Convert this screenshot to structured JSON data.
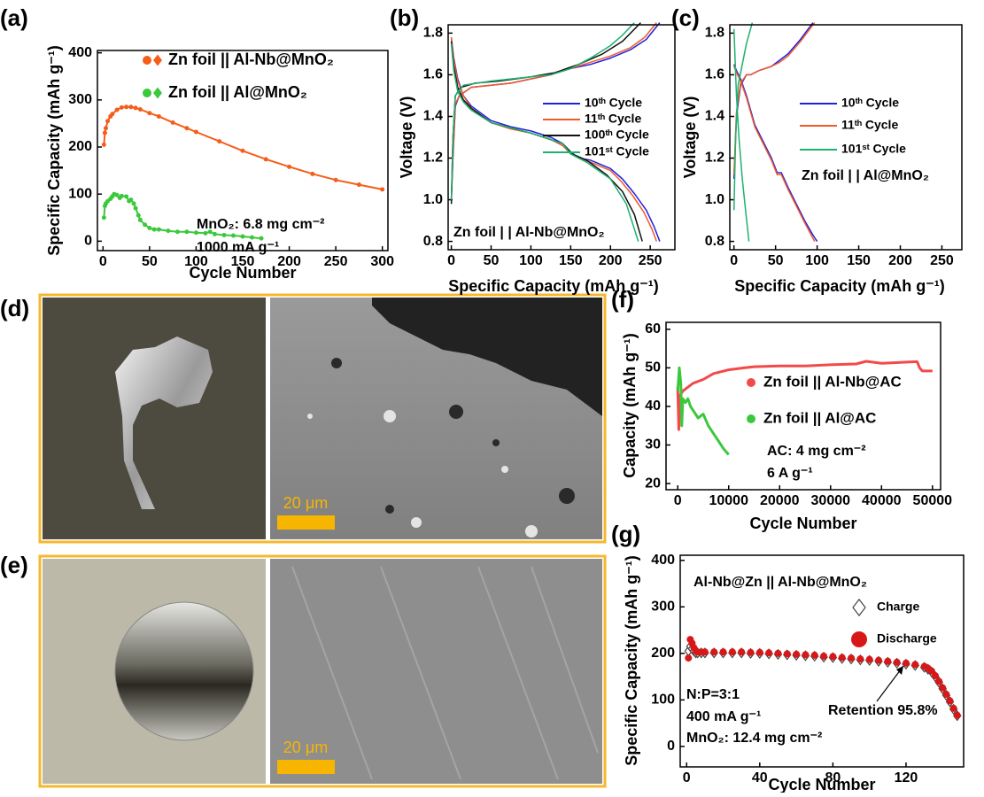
{
  "chart_data": [
    {
      "type": "line",
      "panel": "(a)",
      "x_label": "Cycle Number",
      "y_label": "Specific Capacity (mAh g⁻¹)",
      "xlim": [
        -6,
        306
      ],
      "ylim": [
        -20,
        405
      ],
      "xticks": [
        0,
        50,
        100,
        150,
        200,
        250,
        300
      ],
      "yticks": [
        0,
        100,
        200,
        300,
        400
      ],
      "series": [
        {
          "name": "Zn foil || Al-Nb@MnO₂",
          "color": "#f45d1a",
          "marker": "circle",
          "x": [
            1,
            2,
            3,
            5,
            8,
            10,
            15,
            20,
            25,
            30,
            35,
            40,
            50,
            60,
            75,
            90,
            100,
            125,
            150,
            175,
            200,
            225,
            250,
            275,
            300
          ],
          "values": [
            205,
            230,
            240,
            255,
            265,
            270,
            279,
            284,
            285,
            285,
            283,
            280,
            272,
            265,
            252,
            240,
            232,
            212,
            192,
            174,
            158,
            143,
            130,
            120,
            110
          ]
        },
        {
          "name": "Zn foil || Al@MnO₂",
          "color": "#3cc83c",
          "marker": "circle",
          "x": [
            1,
            2,
            3,
            5,
            8,
            10,
            12,
            15,
            18,
            20,
            25,
            28,
            30,
            33,
            35,
            38,
            40,
            45,
            50,
            55,
            60,
            70,
            80,
            90,
            100,
            110,
            115,
            120,
            130,
            140,
            150,
            160,
            170
          ],
          "values": [
            50,
            75,
            80,
            85,
            90,
            95,
            100,
            98,
            92,
            96,
            95,
            85,
            88,
            80,
            70,
            55,
            45,
            35,
            28,
            25,
            25,
            22,
            20,
            20,
            18,
            17,
            20,
            15,
            13,
            12,
            10,
            8,
            6
          ]
        }
      ],
      "annotations": [
        "MnO₂: 6.8 mg cm⁻²",
        "1000 mA g⁻¹"
      ]
    },
    {
      "type": "line",
      "panel": "(b)",
      "x_label": "Specific Capacity (mAh g⁻¹)",
      "y_label": "Voltage (V)",
      "xlim": [
        -4,
        281
      ],
      "ylim": [
        0.76,
        1.84
      ],
      "xticks": [
        0,
        50,
        100,
        150,
        200,
        250
      ],
      "yticks": [
        0.8,
        {
          "value": 1,
          "label": "1.0"
        },
        1.2,
        1.4,
        1.6,
        1.8
      ],
      "series": [
        {
          "name": "10ᵗʰ Cycle",
          "color": "#2020e0",
          "x": [
            0,
            2,
            5,
            10,
            25,
            50,
            75,
            100,
            125,
            150,
            175,
            200,
            225,
            245,
            262,
            null,
            0,
            3,
            8,
            15,
            25,
            50,
            75,
            100,
            125,
            140,
            150,
            160,
            175,
            200,
            215,
            230,
            245,
            255,
            262
          ],
          "values": [
            1.0,
            1.2,
            1.45,
            1.5,
            1.54,
            1.55,
            1.56,
            1.58,
            1.6,
            1.63,
            1.65,
            1.68,
            1.72,
            1.77,
            1.85,
            null,
            1.78,
            1.68,
            1.58,
            1.5,
            1.45,
            1.38,
            1.35,
            1.33,
            1.3,
            1.27,
            1.23,
            1.2,
            1.19,
            1.15,
            1.1,
            1.03,
            0.95,
            0.87,
            0.8
          ]
        },
        {
          "name": "11ᵗʰ Cycle",
          "color": "#f05a28",
          "x": [
            0,
            2,
            5,
            10,
            25,
            50,
            75,
            100,
            125,
            150,
            175,
            200,
            225,
            243,
            258,
            null,
            0,
            3,
            8,
            15,
            25,
            50,
            75,
            100,
            125,
            140,
            150,
            160,
            175,
            200,
            213,
            228,
            242,
            252,
            258
          ],
          "values": [
            1.0,
            1.22,
            1.46,
            1.5,
            1.54,
            1.55,
            1.56,
            1.58,
            1.6,
            1.63,
            1.66,
            1.69,
            1.73,
            1.78,
            1.85,
            null,
            1.78,
            1.67,
            1.57,
            1.5,
            1.44,
            1.37,
            1.34,
            1.32,
            1.29,
            1.26,
            1.22,
            1.2,
            1.18,
            1.14,
            1.09,
            1.02,
            0.94,
            0.86,
            0.8
          ]
        },
        {
          "name": "100ᵗʰ Cycle",
          "color": "#111111",
          "x": [
            0,
            2,
            5,
            12,
            30,
            60,
            100,
            130,
            160,
            190,
            215,
            238,
            null,
            0,
            3,
            8,
            15,
            25,
            50,
            100,
            140,
            152,
            170,
            195,
            215,
            230,
            240
          ],
          "values": [
            0.98,
            1.3,
            1.5,
            1.54,
            1.56,
            1.57,
            1.59,
            1.61,
            1.65,
            1.7,
            1.76,
            1.85,
            null,
            1.76,
            1.64,
            1.54,
            1.48,
            1.44,
            1.37,
            1.32,
            1.27,
            1.22,
            1.19,
            1.12,
            1.04,
            0.93,
            0.8
          ]
        },
        {
          "name": "101ˢᵗ Cycle",
          "color": "#20b070",
          "x": [
            0,
            2,
            5,
            15,
            50,
            100,
            125,
            150,
            175,
            200,
            215,
            230,
            null,
            0,
            3,
            8,
            15,
            25,
            50,
            100,
            140,
            150,
            170,
            200,
            220,
            235
          ],
          "values": [
            1.0,
            1.3,
            1.5,
            1.55,
            1.57,
            1.59,
            1.6,
            1.63,
            1.68,
            1.74,
            1.79,
            1.85,
            null,
            1.75,
            1.62,
            1.52,
            1.47,
            1.43,
            1.37,
            1.32,
            1.27,
            1.22,
            1.18,
            1.1,
            0.98,
            0.8
          ]
        }
      ],
      "annotations": [
        "Zn foil | | Al-Nb@MnO₂"
      ]
    },
    {
      "type": "line",
      "panel": "(c)",
      "x_label": "Specific Capacity (mAh g⁻¹)",
      "y_label": "Voltage (V)",
      "xlim": [
        -5,
        274
      ],
      "ylim": [
        0.76,
        1.84
      ],
      "xticks": [
        0,
        50,
        100,
        150,
        200,
        250
      ],
      "yticks": [
        0.8,
        {
          "value": 1,
          "label": "1.0"
        },
        1.2,
        1.4,
        1.6,
        1.8
      ],
      "series": [
        {
          "name": "10ᵗʰ Cycle",
          "color": "#2020e0",
          "x": [
            0,
            3,
            8,
            15,
            20,
            30,
            45,
            55,
            65,
            80,
            95,
            null,
            0,
            3,
            8,
            15,
            25,
            35,
            45,
            52,
            57,
            65,
            75,
            85,
            95,
            100
          ],
          "values": [
            1.1,
            1.4,
            1.55,
            1.6,
            1.6,
            1.62,
            1.64,
            1.67,
            1.7,
            1.77,
            1.85,
            null,
            1.65,
            1.62,
            1.58,
            1.5,
            1.36,
            1.28,
            1.2,
            1.13,
            1.13,
            1.06,
            0.98,
            0.9,
            0.83,
            0.8
          ]
        },
        {
          "name": "11ᵗʰ Cycle",
          "color": "#f05a28",
          "x": [
            0,
            3,
            8,
            15,
            20,
            30,
            45,
            55,
            65,
            80,
            97,
            null,
            0,
            3,
            8,
            15,
            25,
            35,
            45,
            52,
            57,
            65,
            75,
            85,
            93,
            97
          ],
          "values": [
            1.12,
            1.42,
            1.56,
            1.6,
            1.6,
            1.62,
            1.64,
            1.66,
            1.69,
            1.76,
            1.85,
            null,
            1.64,
            1.61,
            1.57,
            1.49,
            1.35,
            1.27,
            1.19,
            1.12,
            1.12,
            1.05,
            0.97,
            0.89,
            0.83,
            0.8
          ]
        },
        {
          "name": "101ˢᵗ Cycle",
          "color": "#20b070",
          "x": [
            0,
            2,
            5,
            10,
            15,
            22,
            null,
            0,
            3,
            6,
            10,
            14,
            18
          ],
          "values": [
            0.95,
            1.3,
            1.55,
            1.65,
            1.75,
            1.85,
            null,
            1.82,
            1.5,
            1.3,
            1.1,
            0.95,
            0.8
          ]
        }
      ],
      "annotations": [
        "Zn foil | | Al@MnO₂"
      ]
    },
    {
      "type": "line",
      "panel": "(f)",
      "x_label": "Cycle Number",
      "y_label": "Capacity (mAh g⁻¹)",
      "xlim": [
        -2300,
        51600
      ],
      "ylim": [
        18.4,
        61.8
      ],
      "xticks": [
        0,
        10000,
        20000,
        30000,
        40000,
        50000
      ],
      "yticks": [
        20,
        30,
        40,
        50,
        60
      ],
      "series": [
        {
          "name": "Zn foil || Al-Nb@AC",
          "color": "#f24a4a",
          "x": [
            0,
            200,
            500,
            1000,
            2000,
            3000,
            5000,
            7000,
            10000,
            13000,
            15000,
            20000,
            25000,
            30000,
            35000,
            37000,
            40000,
            45000,
            47000,
            47500,
            48000,
            50000
          ],
          "values": [
            45,
            34,
            43,
            44,
            45,
            46,
            47,
            48.5,
            49.5,
            50,
            50.3,
            50.5,
            50.5,
            50.8,
            51,
            51.7,
            51.2,
            51.5,
            51.6,
            50,
            49.2,
            49.2
          ]
        },
        {
          "name": "Zn foil || Al@AC",
          "color": "#3cc83c",
          "x": [
            0,
            300,
            600,
            800,
            1000,
            1500,
            2000,
            2500,
            3000,
            4000,
            5000,
            6000,
            7000,
            8000,
            9000,
            10000
          ],
          "values": [
            44,
            50,
            46,
            35,
            42,
            41,
            42,
            40,
            39,
            37,
            38,
            35,
            33,
            31,
            29,
            27.5
          ]
        }
      ],
      "annotations": [
        "AC: 4 mg cm⁻²",
        "6 A g⁻¹"
      ]
    },
    {
      "type": "scatter",
      "panel": "(g)",
      "x_label": "Cycle Number",
      "y_label": "Specific Capacity (mAh g⁻¹)",
      "xlim": [
        -3.5,
        151.5
      ],
      "ylim": [
        -44,
        411
      ],
      "xticks": [
        0,
        40,
        80,
        120
      ],
      "yticks": [
        0,
        100,
        200,
        300,
        400
      ],
      "series": [
        {
          "name": "Charge",
          "color": "#444444",
          "marker": "diamond",
          "x": [
            1,
            2,
            3,
            4,
            5,
            6,
            8,
            10,
            15,
            20,
            25,
            30,
            35,
            40,
            45,
            50,
            55,
            60,
            65,
            70,
            75,
            80,
            85,
            90,
            95,
            100,
            105,
            110,
            115,
            120,
            125,
            130,
            132,
            134,
            136,
            138,
            140,
            142,
            144,
            146,
            148
          ],
          "values": [
            205,
            215,
            210,
            205,
            201,
            201,
            201,
            201,
            201,
            201,
            201,
            201,
            200,
            200,
            199,
            198,
            197,
            196,
            195,
            194,
            192,
            191,
            189,
            188,
            186,
            185,
            183,
            181,
            179,
            177,
            174,
            170,
            166,
            160,
            150,
            138,
            124,
            110,
            96,
            80,
            66
          ]
        },
        {
          "name": "Discharge",
          "color": "#d81818",
          "marker": "circle",
          "x": [
            1,
            2,
            3,
            4,
            5,
            6,
            8,
            10,
            15,
            20,
            25,
            30,
            35,
            40,
            45,
            50,
            55,
            60,
            65,
            70,
            75,
            80,
            85,
            90,
            95,
            100,
            105,
            110,
            115,
            120,
            125,
            130,
            132,
            134,
            136,
            138,
            140,
            142,
            144,
            146,
            148
          ],
          "values": [
            190,
            230,
            222,
            212,
            205,
            203,
            203,
            203,
            203,
            203,
            203,
            203,
            202,
            202,
            201,
            200,
            199,
            198,
            197,
            196,
            194,
            193,
            191,
            190,
            188,
            187,
            185,
            183,
            181,
            179,
            176,
            172,
            168,
            162,
            152,
            140,
            126,
            112,
            98,
            82,
            67
          ]
        }
      ],
      "annotations": [
        "Al-Nb@Zn || Al-Nb@MnO₂",
        "N:P=3:1",
        "400 mA g⁻¹",
        "MnO₂: 12.4 mg cm⁻²",
        "Retention 95.8%"
      ]
    }
  ],
  "photos": [
    {
      "panel": "(d)",
      "scale_bar": "20 μm"
    },
    {
      "panel": "(e)",
      "scale_bar": "20 μm"
    }
  ]
}
